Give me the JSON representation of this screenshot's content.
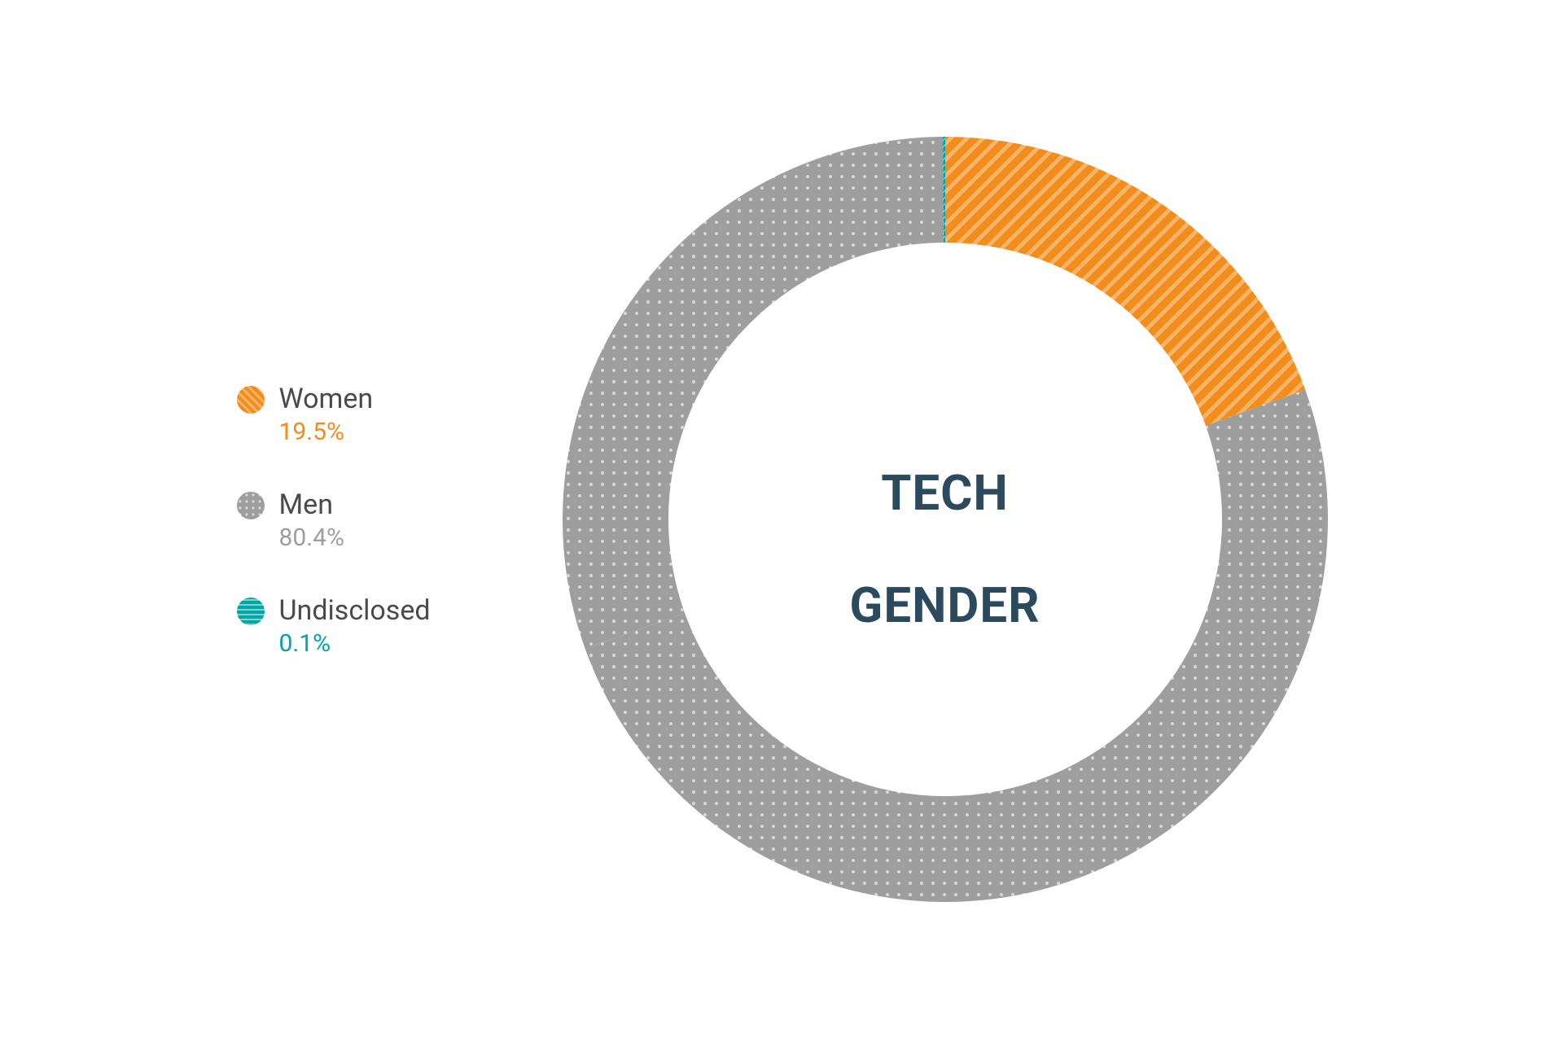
{
  "chart": {
    "type": "donut",
    "title_line1": "TECH",
    "title_line2": "GENDER",
    "title_color": "#2c4a5e",
    "title_fontsize": 60,
    "outer_radius": 470,
    "inner_radius": 340,
    "background_color": "#ffffff",
    "start_angle_deg": 0,
    "slices": [
      {
        "key": "women",
        "label": "Women",
        "value_pct": 19.5,
        "value_text": "19.5%",
        "color": "#f28c1a",
        "pattern": "diag-stripes",
        "pattern_stroke": "#ffffff",
        "pattern_opacity": 0.35
      },
      {
        "key": "men",
        "label": "Men",
        "value_pct": 80.4,
        "value_text": "80.4%",
        "color": "#9e9e9e",
        "pattern": "dots",
        "pattern_stroke": "#ffffff",
        "pattern_opacity": 0.6
      },
      {
        "key": "undisclosed",
        "label": "Undisclosed",
        "value_pct": 0.1,
        "value_text": "0.1%",
        "color": "#00a6a6",
        "pattern": "waves",
        "pattern_stroke": "#ffffff",
        "pattern_opacity": 0.5
      }
    ],
    "legend": {
      "label_color": "#4a4a4a",
      "label_fontsize": 34,
      "value_fontsize": 30,
      "swatch_diameter": 34,
      "gap_between_items": 50
    }
  }
}
